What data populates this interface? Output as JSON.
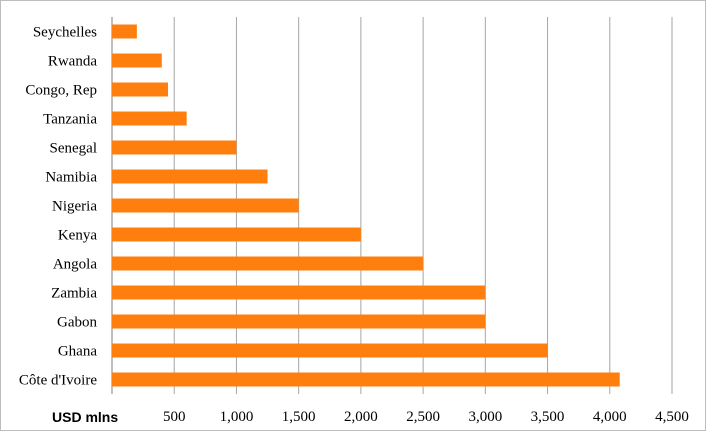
{
  "chart_data": {
    "type": "bar",
    "orientation": "horizontal",
    "categories": [
      "Seychelles",
      "Rwanda",
      "Congo, Rep",
      "Tanzania",
      "Senegal",
      "Namibia",
      "Nigeria",
      "Kenya",
      "Angola",
      "Zambia",
      "Gabon",
      "Ghana",
      "Côte d'Ivoire"
    ],
    "values": [
      200,
      400,
      450,
      600,
      1000,
      1250,
      1500,
      2000,
      2500,
      3000,
      3000,
      3500,
      4080
    ],
    "xlabel": "USD mlns",
    "ylabel": "",
    "xlim": [
      0,
      4500
    ],
    "xticks": [
      0,
      500,
      1000,
      1500,
      2000,
      2500,
      3000,
      3500,
      4000,
      4500
    ],
    "xtick_labels": [
      "",
      "500",
      "1,000",
      "1,500",
      "2,000",
      "2,500",
      "3,000",
      "3,500",
      "4,000",
      "4,500"
    ],
    "grid": "vertical",
    "legend": "none",
    "bar_color": "#ff7f0e"
  }
}
